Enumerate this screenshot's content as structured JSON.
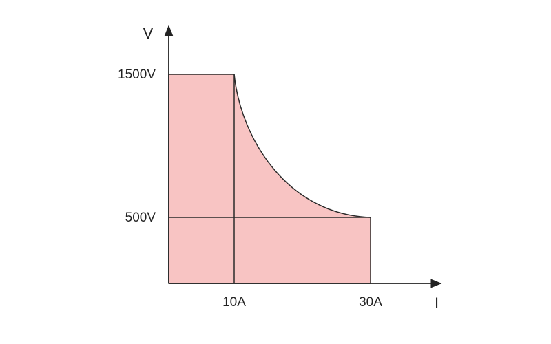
{
  "axes": {
    "y_label": "V",
    "x_label": "I"
  },
  "y_marks": [
    "1500V",
    "500V"
  ],
  "x_marks": [
    "10A",
    "30A"
  ]
}
